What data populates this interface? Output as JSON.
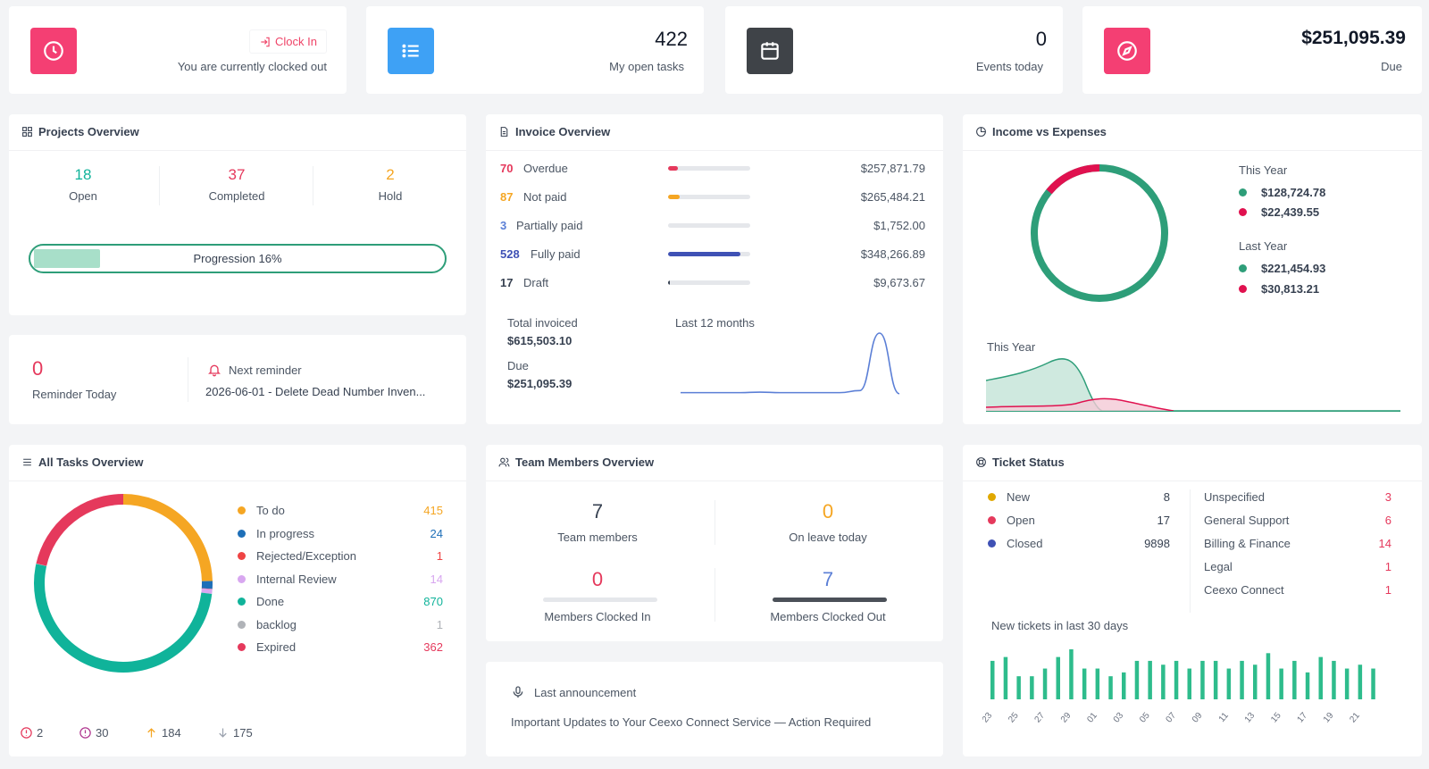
{
  "stats": [
    {
      "icon": "clock-icon",
      "color": "#f43f73",
      "button_label": "Clock In",
      "label": "You are currently clocked out"
    },
    {
      "icon": "list-icon",
      "color": "#3ea1f5",
      "value": "422",
      "label": "My open tasks"
    },
    {
      "icon": "calendar-icon",
      "color": "#3f4348",
      "value": "0",
      "label": "Events today"
    },
    {
      "icon": "compass-icon",
      "color": "#f43f73",
      "value": "$251,095.39",
      "label": "Due"
    }
  ],
  "projects": {
    "title": "Projects Overview",
    "open": {
      "value": "18",
      "label": "Open",
      "color": "#10b39a"
    },
    "completed": {
      "value": "37",
      "label": "Completed",
      "color": "#e5395c"
    },
    "hold": {
      "value": "2",
      "label": "Hold",
      "color": "#f5a623"
    },
    "progression_label": "Progression 16%",
    "progression_percent": 16
  },
  "reminder": {
    "count": "0",
    "count_label": "Reminder Today",
    "next_label": "Next reminder",
    "next_text": "2026-06-01 - Delete Dead Number Inven..."
  },
  "invoice": {
    "title": "Invoice Overview",
    "rows": [
      {
        "count": "70",
        "label": "Overdue",
        "amount": "$257,871.79",
        "color": "#e5395c",
        "fill_percent": 12
      },
      {
        "count": "87",
        "label": "Not paid",
        "amount": "$265,484.21",
        "color": "#f5a623",
        "fill_percent": 14
      },
      {
        "count": "3",
        "label": "Partially paid",
        "amount": "$1,752.00",
        "color": "#5b7fd6",
        "fill_percent": 0
      },
      {
        "count": "528",
        "label": "Fully paid",
        "amount": "$348,266.89",
        "color": "#3f51b5",
        "fill_percent": 88
      },
      {
        "count": "17",
        "label": "Draft",
        "amount": "$9,673.67",
        "color": "#374151",
        "fill_percent": 2
      }
    ],
    "total_invoiced_label": "Total invoiced",
    "total_invoiced_value": "$615,503.10",
    "due_label": "Due",
    "due_value": "$251,095.39",
    "trend_label": "Last 12 months",
    "trend_values": [
      3,
      3,
      3,
      3,
      3.5,
      3,
      3,
      3,
      3,
      5,
      62,
      2
    ]
  },
  "income": {
    "title": "Income vs Expenses",
    "this_year_label": "This Year",
    "this_year_income": "$128,724.78",
    "this_year_expense": "$22,439.55",
    "last_year_label": "Last Year",
    "last_year_income": "$221,454.93",
    "last_year_expense": "$30,813.21",
    "income_color": "#2e9e79",
    "expense_color": "#e0114f",
    "area_label": "This Year"
  },
  "tasks": {
    "title": "All Tasks Overview",
    "items": [
      {
        "label": "To do",
        "value": "415",
        "color": "#f5a623"
      },
      {
        "label": "In progress",
        "value": "24",
        "color": "#1e6fb8"
      },
      {
        "label": "Rejected/Exception",
        "value": "1",
        "color": "#ef4444"
      },
      {
        "label": "Internal Review",
        "value": "14",
        "color": "#d8a7f0"
      },
      {
        "label": "Done",
        "value": "870",
        "color": "#10b39a"
      },
      {
        "label": "backlog",
        "value": "1",
        "color": "#b0b3b8"
      },
      {
        "label": "Expired",
        "value": "362",
        "color": "#e5395c"
      }
    ],
    "footer": [
      {
        "icon": "alert-circle-icon",
        "value": "2",
        "color": "#e5395c"
      },
      {
        "icon": "alert-circle-icon",
        "value": "30",
        "color": "#b0368f"
      },
      {
        "icon": "arrow-up-icon",
        "value": "184",
        "color": "#f5a623"
      },
      {
        "icon": "arrow-down-icon",
        "value": "175",
        "color": "#9ca3af"
      }
    ]
  },
  "team": {
    "title": "Team Members Overview",
    "members": {
      "value": "7",
      "label": "Team members"
    },
    "leave": {
      "value": "0",
      "label": "On leave today"
    },
    "clocked_in": {
      "value": "0",
      "label": "Members Clocked In"
    },
    "clocked_out": {
      "value": "7",
      "label": "Members Clocked Out"
    }
  },
  "announcement": {
    "label": "Last announcement",
    "text": "Important Updates to Your Ceexo Connect Service — Action Required"
  },
  "tickets": {
    "title": "Ticket Status",
    "status": [
      {
        "label": "New",
        "value": "8",
        "color": "#e0a800"
      },
      {
        "label": "Open",
        "value": "17",
        "color": "#e5395c"
      },
      {
        "label": "Closed",
        "value": "9898",
        "color": "#3f51b5"
      }
    ],
    "categories": [
      {
        "label": "Unspecified",
        "value": "3"
      },
      {
        "label": "General Support",
        "value": "6"
      },
      {
        "label": "Billing & Finance",
        "value": "14"
      },
      {
        "label": "Legal",
        "value": "1"
      },
      {
        "label": "Ceexo Connect",
        "value": "1"
      }
    ],
    "chart_label": "New tickets in last 30 days",
    "chart_data": {
      "type": "bar",
      "categories": [
        "23",
        "24",
        "25",
        "26",
        "27",
        "28",
        "29",
        "30",
        "01",
        "02",
        "03",
        "04",
        "05",
        "06",
        "07",
        "08",
        "09",
        "10",
        "11",
        "12",
        "13",
        "14",
        "15",
        "16",
        "17",
        "18",
        "19",
        "20",
        "21",
        "22"
      ],
      "tick_labels": [
        "23",
        "25",
        "27",
        "29",
        "01",
        "03",
        "05",
        "07",
        "09",
        "11",
        "13",
        "15",
        "17",
        "19",
        "21"
      ],
      "values": [
        10,
        11,
        6,
        6,
        8,
        11,
        13,
        8,
        8,
        6,
        7,
        10,
        10,
        9,
        10,
        8,
        10,
        10,
        8,
        10,
        9,
        12,
        8,
        10,
        7,
        11,
        10,
        8,
        9,
        8
      ]
    }
  }
}
